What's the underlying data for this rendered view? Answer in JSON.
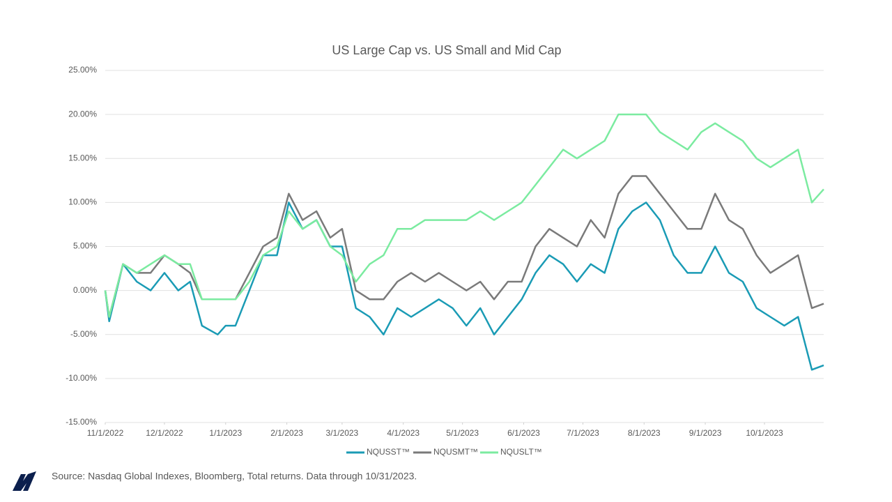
{
  "chart_data": {
    "type": "line",
    "title": "US Large Cap vs. US Small and Mid Cap",
    "source": "Source: Nasdaq Global Indexes, Bloomberg, Total returns. Data through 10/31/2023.",
    "x": [
      "2022-11-01",
      "2022-11-03",
      "2022-11-10",
      "2022-11-17",
      "2022-11-24",
      "2022-12-01",
      "2022-12-08",
      "2022-12-14",
      "2022-12-20",
      "2022-12-28",
      "2023-01-01",
      "2023-01-06",
      "2023-01-13",
      "2023-01-20",
      "2023-01-27",
      "2023-02-02",
      "2023-02-09",
      "2023-02-16",
      "2023-02-23",
      "2023-03-01",
      "2023-03-08",
      "2023-03-15",
      "2023-03-22",
      "2023-03-29",
      "2023-04-05",
      "2023-04-12",
      "2023-04-19",
      "2023-04-26",
      "2023-05-03",
      "2023-05-10",
      "2023-05-17",
      "2023-05-24",
      "2023-05-31",
      "2023-06-07",
      "2023-06-14",
      "2023-06-21",
      "2023-06-28",
      "2023-07-05",
      "2023-07-12",
      "2023-07-19",
      "2023-07-26",
      "2023-08-02",
      "2023-08-09",
      "2023-08-16",
      "2023-08-23",
      "2023-08-30",
      "2023-09-06",
      "2023-09-13",
      "2023-09-20",
      "2023-09-27",
      "2023-10-04",
      "2023-10-11",
      "2023-10-18",
      "2023-10-25",
      "2023-10-31"
    ],
    "series": [
      {
        "name": "NQUSST™",
        "color": "#1a9bb5",
        "values": [
          0,
          -3.5,
          3,
          1,
          0,
          2,
          0,
          1,
          -4,
          -5,
          -4,
          -4,
          0,
          4,
          4,
          10,
          7,
          8,
          5,
          5,
          -2,
          -3,
          -5,
          -2,
          -3,
          -2,
          -1,
          -2,
          -4,
          -2,
          -5,
          -3,
          -1,
          2,
          4,
          3,
          1,
          3,
          2,
          7,
          9,
          10,
          8,
          4,
          2,
          2,
          5,
          2,
          1,
          -2,
          -3,
          -4,
          -3,
          -9,
          -8.5
        ]
      },
      {
        "name": "NQUSMT™",
        "color": "#7a7a7a",
        "values": [
          0,
          -3,
          3,
          2,
          2,
          4,
          3,
          2,
          -1,
          -1,
          -1,
          -1,
          2,
          5,
          6,
          11,
          8,
          9,
          6,
          7,
          0,
          -1,
          -1,
          1,
          2,
          1,
          2,
          1,
          0,
          1,
          -1,
          1,
          1,
          5,
          7,
          6,
          5,
          8,
          6,
          11,
          13,
          13,
          11,
          9,
          7,
          7,
          11,
          8,
          7,
          4,
          2,
          3,
          4,
          -2,
          -1.5
        ]
      },
      {
        "name": "NQUSLT™",
        "color": "#7beba0",
        "values": [
          0,
          -3,
          3,
          2,
          3,
          4,
          3,
          3,
          -1,
          -1,
          -1,
          -1,
          1,
          4,
          5,
          9,
          7,
          8,
          5,
          4,
          1,
          3,
          4,
          7,
          7,
          8,
          8,
          8,
          8,
          9,
          8,
          9,
          10,
          12,
          14,
          16,
          15,
          16,
          17,
          20,
          20,
          20,
          18,
          17,
          16,
          18,
          19,
          18,
          17,
          15,
          14,
          15,
          16,
          10,
          11.5
        ]
      }
    ],
    "xlim": [
      "2022-11-01",
      "2023-10-31"
    ],
    "xticks": [
      {
        "value": "2022-11-01",
        "label": "11/1/2022"
      },
      {
        "value": "2022-12-01",
        "label": "12/1/2022"
      },
      {
        "value": "2023-01-01",
        "label": "1/1/2023"
      },
      {
        "value": "2023-02-01",
        "label": "2/1/2023"
      },
      {
        "value": "2023-03-01",
        "label": "3/1/2023"
      },
      {
        "value": "2023-04-01",
        "label": "4/1/2023"
      },
      {
        "value": "2023-05-01",
        "label": "5/1/2023"
      },
      {
        "value": "2023-06-01",
        "label": "6/1/2023"
      },
      {
        "value": "2023-07-01",
        "label": "7/1/2023"
      },
      {
        "value": "2023-08-01",
        "label": "8/1/2023"
      },
      {
        "value": "2023-09-01",
        "label": "9/1/2023"
      },
      {
        "value": "2023-10-01",
        "label": "10/1/2023"
      }
    ],
    "ylim": [
      -15,
      25
    ],
    "yticks": [
      {
        "value": -15,
        "label": "-15.00%"
      },
      {
        "value": -10,
        "label": "-10.00%"
      },
      {
        "value": -5,
        "label": "-5.00%"
      },
      {
        "value": 0,
        "label": "0.00%"
      },
      {
        "value": 5,
        "label": "5.00%"
      },
      {
        "value": 10,
        "label": "10.00%"
      },
      {
        "value": 15,
        "label": "15.00%"
      },
      {
        "value": 20,
        "label": "20.00%"
      },
      {
        "value": 25,
        "label": "25.00%"
      }
    ],
    "grid": true
  }
}
